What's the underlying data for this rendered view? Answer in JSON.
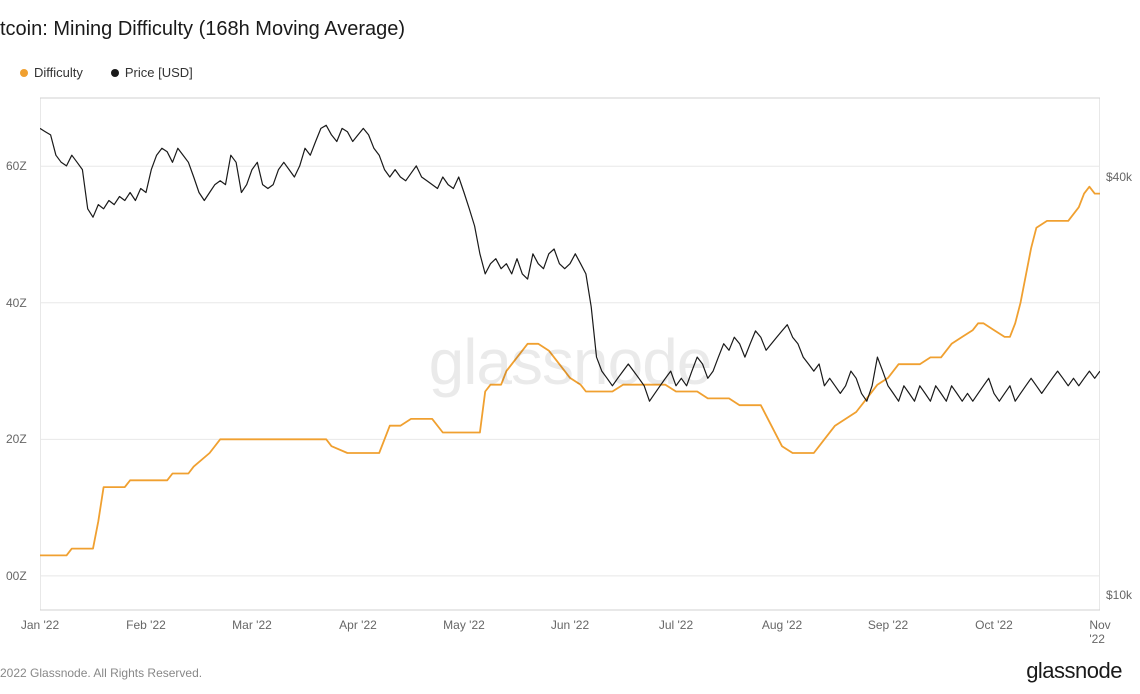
{
  "title": "tcoin: Mining Difficulty (168h Moving Average)",
  "legend": {
    "series1": {
      "label": "Difficulty",
      "color": "#f0a030"
    },
    "series2": {
      "label": "Price [USD]",
      "color": "#1a1a1a"
    }
  },
  "watermark": "glassnode",
  "footer_left": "2022 Glassnode. All Rights Reserved.",
  "footer_right": "glassnode",
  "chart": {
    "background": "#ffffff",
    "border_color": "#d0d0d0",
    "gridline_color": "#e8e8e8",
    "x_axis": {
      "domain": [
        0,
        10
      ],
      "ticks": [
        0,
        1,
        2,
        3,
        4,
        5,
        6,
        7,
        8,
        9,
        10
      ],
      "labels": [
        "Jan '22",
        "Feb '22",
        "Mar '22",
        "Apr '22",
        "May '22",
        "Jun '22",
        "Jul '22",
        "Aug '22",
        "Sep '22",
        "Oct '22",
        "Nov '22"
      ],
      "label_fontsize": 12,
      "label_color": "#666666"
    },
    "y_left": {
      "domain": [
        90,
        70
      ],
      "ticks": [
        100,
        120,
        140,
        160
      ],
      "labels": [
        "00Z",
        "20Z",
        "40Z",
        "60Z"
      ],
      "label_fontsize": 12,
      "label_color": "#666666"
    },
    "y_right": {
      "domain": [
        9,
        50
      ],
      "ticks": [
        10,
        40
      ],
      "labels": [
        "$10k",
        "$40k"
      ],
      "type": "log",
      "label_fontsize": 12,
      "label_color": "#666666"
    },
    "difficulty_series": {
      "color": "#f0a030",
      "line_width": 1.8,
      "data": [
        [
          0.0,
          103
        ],
        [
          0.25,
          103
        ],
        [
          0.3,
          104
        ],
        [
          0.5,
          104
        ],
        [
          0.55,
          108
        ],
        [
          0.6,
          113
        ],
        [
          0.8,
          113
        ],
        [
          0.85,
          114
        ],
        [
          1.0,
          114
        ],
        [
          1.05,
          114
        ],
        [
          1.2,
          114
        ],
        [
          1.25,
          115
        ],
        [
          1.4,
          115
        ],
        [
          1.45,
          116
        ],
        [
          1.6,
          118
        ],
        [
          1.7,
          120
        ],
        [
          1.85,
          120
        ],
        [
          1.9,
          120
        ],
        [
          2.0,
          120
        ],
        [
          2.2,
          120
        ],
        [
          2.25,
          120
        ],
        [
          2.4,
          120
        ],
        [
          2.5,
          120
        ],
        [
          2.7,
          120
        ],
        [
          2.75,
          119
        ],
        [
          2.9,
          118
        ],
        [
          3.0,
          118
        ],
        [
          3.1,
          118
        ],
        [
          3.2,
          118
        ],
        [
          3.3,
          122
        ],
        [
          3.4,
          122
        ],
        [
          3.5,
          123
        ],
        [
          3.7,
          123
        ],
        [
          3.8,
          121
        ],
        [
          3.9,
          121
        ],
        [
          4.0,
          121
        ],
        [
          4.15,
          121
        ],
        [
          4.2,
          127
        ],
        [
          4.25,
          128
        ],
        [
          4.35,
          128
        ],
        [
          4.4,
          130
        ],
        [
          4.5,
          132
        ],
        [
          4.6,
          134
        ],
        [
          4.7,
          134
        ],
        [
          4.8,
          133
        ],
        [
          4.9,
          131
        ],
        [
          5.0,
          129
        ],
        [
          5.1,
          128
        ],
        [
          5.15,
          127
        ],
        [
          5.25,
          127
        ],
        [
          5.35,
          127
        ],
        [
          5.4,
          127
        ],
        [
          5.5,
          128
        ],
        [
          5.6,
          128
        ],
        [
          5.7,
          128
        ],
        [
          5.8,
          128
        ],
        [
          5.85,
          128
        ],
        [
          5.9,
          128
        ],
        [
          6.0,
          127
        ],
        [
          6.1,
          127
        ],
        [
          6.2,
          127
        ],
        [
          6.3,
          126
        ],
        [
          6.4,
          126
        ],
        [
          6.5,
          126
        ],
        [
          6.6,
          125
        ],
        [
          6.7,
          125
        ],
        [
          6.8,
          125
        ],
        [
          6.9,
          122
        ],
        [
          7.0,
          119
        ],
        [
          7.1,
          118
        ],
        [
          7.2,
          118
        ],
        [
          7.3,
          118
        ],
        [
          7.35,
          119
        ],
        [
          7.4,
          120
        ],
        [
          7.5,
          122
        ],
        [
          7.6,
          123
        ],
        [
          7.7,
          124
        ],
        [
          7.8,
          126
        ],
        [
          7.9,
          128
        ],
        [
          8.0,
          129
        ],
        [
          8.05,
          130
        ],
        [
          8.1,
          131
        ],
        [
          8.2,
          131
        ],
        [
          8.3,
          131
        ],
        [
          8.4,
          132
        ],
        [
          8.5,
          132
        ],
        [
          8.6,
          134
        ],
        [
          8.7,
          135
        ],
        [
          8.8,
          136
        ],
        [
          8.85,
          137
        ],
        [
          8.9,
          137
        ],
        [
          9.0,
          136
        ],
        [
          9.1,
          135
        ],
        [
          9.15,
          135
        ],
        [
          9.2,
          137
        ],
        [
          9.25,
          140
        ],
        [
          9.3,
          144
        ],
        [
          9.35,
          148
        ],
        [
          9.4,
          151
        ],
        [
          9.5,
          152
        ],
        [
          9.6,
          152
        ],
        [
          9.7,
          152
        ],
        [
          9.8,
          154
        ],
        [
          9.85,
          156
        ],
        [
          9.9,
          157
        ],
        [
          9.95,
          156
        ],
        [
          10.0,
          156
        ]
      ]
    },
    "price_series": {
      "color": "#1a1a1a",
      "line_width": 1.2,
      "data": [
        [
          0.0,
          47
        ],
        [
          0.05,
          46.5
        ],
        [
          0.1,
          46
        ],
        [
          0.15,
          43
        ],
        [
          0.2,
          42
        ],
        [
          0.25,
          41.5
        ],
        [
          0.3,
          43
        ],
        [
          0.35,
          42
        ],
        [
          0.4,
          41
        ],
        [
          0.45,
          36
        ],
        [
          0.5,
          35
        ],
        [
          0.55,
          36.5
        ],
        [
          0.6,
          36
        ],
        [
          0.65,
          37
        ],
        [
          0.7,
          36.5
        ],
        [
          0.75,
          37.5
        ],
        [
          0.8,
          37
        ],
        [
          0.85,
          38
        ],
        [
          0.9,
          37
        ],
        [
          0.95,
          38.5
        ],
        [
          1.0,
          38
        ],
        [
          1.05,
          41
        ],
        [
          1.1,
          43
        ],
        [
          1.15,
          44
        ],
        [
          1.2,
          43.5
        ],
        [
          1.25,
          42
        ],
        [
          1.3,
          44
        ],
        [
          1.35,
          43
        ],
        [
          1.4,
          42
        ],
        [
          1.45,
          40
        ],
        [
          1.5,
          38
        ],
        [
          1.55,
          37
        ],
        [
          1.6,
          38
        ],
        [
          1.65,
          39
        ],
        [
          1.7,
          39.5
        ],
        [
          1.75,
          39
        ],
        [
          1.8,
          43
        ],
        [
          1.85,
          42
        ],
        [
          1.9,
          38
        ],
        [
          1.95,
          39
        ],
        [
          2.0,
          41
        ],
        [
          2.05,
          42
        ],
        [
          2.1,
          39
        ],
        [
          2.15,
          38.5
        ],
        [
          2.2,
          39
        ],
        [
          2.25,
          41
        ],
        [
          2.3,
          42
        ],
        [
          2.35,
          41
        ],
        [
          2.4,
          40
        ],
        [
          2.45,
          41.5
        ],
        [
          2.5,
          44
        ],
        [
          2.55,
          43
        ],
        [
          2.6,
          45
        ],
        [
          2.65,
          47
        ],
        [
          2.7,
          47.5
        ],
        [
          2.75,
          46
        ],
        [
          2.8,
          45
        ],
        [
          2.85,
          47
        ],
        [
          2.9,
          46.5
        ],
        [
          2.95,
          45
        ],
        [
          3.0,
          46
        ],
        [
          3.05,
          47
        ],
        [
          3.1,
          46
        ],
        [
          3.15,
          44
        ],
        [
          3.2,
          43
        ],
        [
          3.25,
          41
        ],
        [
          3.3,
          40
        ],
        [
          3.35,
          41
        ],
        [
          3.4,
          40
        ],
        [
          3.45,
          39.5
        ],
        [
          3.5,
          40.5
        ],
        [
          3.55,
          41.5
        ],
        [
          3.6,
          40
        ],
        [
          3.65,
          39.5
        ],
        [
          3.7,
          39
        ],
        [
          3.75,
          38.5
        ],
        [
          3.8,
          40
        ],
        [
          3.85,
          39
        ],
        [
          3.9,
          38.5
        ],
        [
          3.95,
          40
        ],
        [
          4.0,
          38
        ],
        [
          4.05,
          36
        ],
        [
          4.1,
          34
        ],
        [
          4.15,
          31
        ],
        [
          4.2,
          29
        ],
        [
          4.25,
          30
        ],
        [
          4.3,
          30.5
        ],
        [
          4.35,
          29.5
        ],
        [
          4.4,
          30
        ],
        [
          4.45,
          29
        ],
        [
          4.5,
          30.5
        ],
        [
          4.55,
          29
        ],
        [
          4.6,
          28.5
        ],
        [
          4.65,
          31
        ],
        [
          4.7,
          30
        ],
        [
          4.75,
          29.5
        ],
        [
          4.8,
          31
        ],
        [
          4.85,
          31.5
        ],
        [
          4.9,
          30
        ],
        [
          4.95,
          29.5
        ],
        [
          5.0,
          30
        ],
        [
          5.05,
          31
        ],
        [
          5.1,
          30
        ],
        [
          5.15,
          29
        ],
        [
          5.2,
          26
        ],
        [
          5.25,
          22
        ],
        [
          5.3,
          21
        ],
        [
          5.35,
          20.5
        ],
        [
          5.4,
          20
        ],
        [
          5.45,
          20.5
        ],
        [
          5.5,
          21
        ],
        [
          5.55,
          21.5
        ],
        [
          5.6,
          21
        ],
        [
          5.65,
          20.5
        ],
        [
          5.7,
          20
        ],
        [
          5.75,
          19
        ],
        [
          5.8,
          19.5
        ],
        [
          5.85,
          20
        ],
        [
          5.9,
          20.5
        ],
        [
          5.95,
          21
        ],
        [
          6.0,
          20
        ],
        [
          6.05,
          20.5
        ],
        [
          6.1,
          20
        ],
        [
          6.15,
          21
        ],
        [
          6.2,
          22
        ],
        [
          6.25,
          21.5
        ],
        [
          6.3,
          20.5
        ],
        [
          6.35,
          21
        ],
        [
          6.4,
          22
        ],
        [
          6.45,
          23
        ],
        [
          6.5,
          22.5
        ],
        [
          6.55,
          23.5
        ],
        [
          6.6,
          23
        ],
        [
          6.65,
          22
        ],
        [
          6.7,
          23
        ],
        [
          6.75,
          24
        ],
        [
          6.8,
          23.5
        ],
        [
          6.85,
          22.5
        ],
        [
          6.9,
          23
        ],
        [
          6.95,
          23.5
        ],
        [
          7.0,
          24
        ],
        [
          7.05,
          24.5
        ],
        [
          7.1,
          23.5
        ],
        [
          7.15,
          23
        ],
        [
          7.2,
          22
        ],
        [
          7.25,
          21.5
        ],
        [
          7.3,
          21
        ],
        [
          7.35,
          21.5
        ],
        [
          7.4,
          20
        ],
        [
          7.45,
          20.5
        ],
        [
          7.5,
          20
        ],
        [
          7.55,
          19.5
        ],
        [
          7.6,
          20
        ],
        [
          7.65,
          21
        ],
        [
          7.7,
          20.5
        ],
        [
          7.75,
          19.5
        ],
        [
          7.8,
          19
        ],
        [
          7.85,
          20
        ],
        [
          7.9,
          22
        ],
        [
          7.95,
          21
        ],
        [
          8.0,
          20
        ],
        [
          8.05,
          19.5
        ],
        [
          8.1,
          19
        ],
        [
          8.15,
          20
        ],
        [
          8.2,
          19.5
        ],
        [
          8.25,
          19
        ],
        [
          8.3,
          20
        ],
        [
          8.35,
          19.5
        ],
        [
          8.4,
          19
        ],
        [
          8.45,
          20
        ],
        [
          8.5,
          19.5
        ],
        [
          8.55,
          19
        ],
        [
          8.6,
          20
        ],
        [
          8.65,
          19.5
        ],
        [
          8.7,
          19
        ],
        [
          8.75,
          19.5
        ],
        [
          8.8,
          19
        ],
        [
          8.85,
          19.5
        ],
        [
          8.9,
          20
        ],
        [
          8.95,
          20.5
        ],
        [
          9.0,
          19.5
        ],
        [
          9.05,
          19
        ],
        [
          9.1,
          19.5
        ],
        [
          9.15,
          20
        ],
        [
          9.2,
          19
        ],
        [
          9.25,
          19.5
        ],
        [
          9.3,
          20
        ],
        [
          9.35,
          20.5
        ],
        [
          9.4,
          20
        ],
        [
          9.45,
          19.5
        ],
        [
          9.5,
          20
        ],
        [
          9.55,
          20.5
        ],
        [
          9.6,
          21
        ],
        [
          9.65,
          20.5
        ],
        [
          9.7,
          20
        ],
        [
          9.75,
          20.5
        ],
        [
          9.8,
          20
        ],
        [
          9.85,
          20.5
        ],
        [
          9.9,
          21
        ],
        [
          9.95,
          20.5
        ],
        [
          10.0,
          21
        ]
      ]
    }
  }
}
